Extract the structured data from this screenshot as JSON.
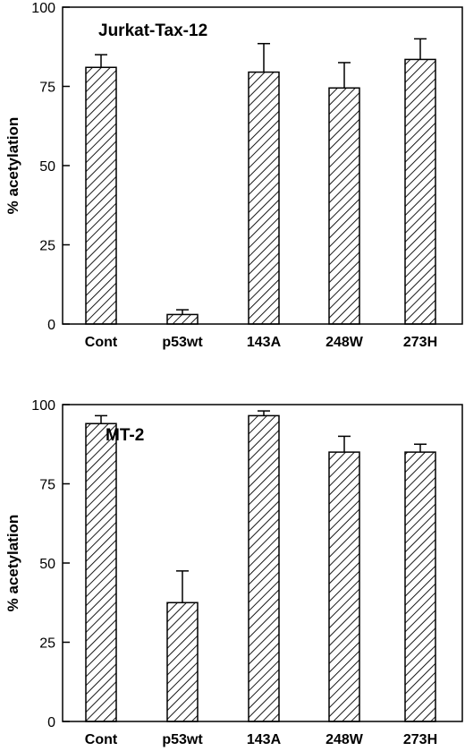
{
  "chart_data": [
    {
      "type": "bar",
      "title": "Jurkat-Tax-12",
      "xlabel": "",
      "ylabel": "% acetylation",
      "ylim": [
        0,
        100
      ],
      "yticks": [
        "0",
        "25",
        "50",
        "75",
        "100"
      ],
      "categories": [
        "Cont",
        "p53wt",
        "143A",
        "248W",
        "273H"
      ],
      "values": [
        81,
        3,
        79.5,
        74.5,
        83.5
      ],
      "errors": [
        4,
        1.5,
        9,
        8,
        6.5
      ],
      "pattern": "diagonal-hatch",
      "grid": false
    },
    {
      "type": "bar",
      "title": "MT-2",
      "xlabel": "",
      "ylabel": "% acetylation",
      "ylim": [
        0,
        100
      ],
      "yticks": [
        "0",
        "25",
        "50",
        "75",
        "100"
      ],
      "categories": [
        "Cont",
        "p53wt",
        "143A",
        "248W",
        "273H"
      ],
      "values": [
        94,
        37.5,
        96.5,
        85,
        85
      ],
      "errors": [
        2.5,
        10,
        1.5,
        5,
        2.5
      ],
      "pattern": "diagonal-hatch",
      "grid": false
    }
  ],
  "colors": {
    "ink": "#000000",
    "background": "#ffffff"
  }
}
